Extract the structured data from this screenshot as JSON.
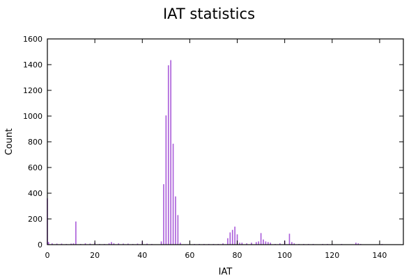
{
  "chart_data": {
    "type": "bar",
    "title": "IAT statistics",
    "xlabel": "IAT",
    "ylabel": "Count",
    "xlim": [
      0,
      150
    ],
    "ylim": [
      0,
      1600
    ],
    "x_ticks": [
      0,
      20,
      40,
      60,
      80,
      100,
      120,
      140
    ],
    "y_ticks": [
      0,
      200,
      400,
      600,
      800,
      1000,
      1200,
      1400,
      1600
    ],
    "grid": false,
    "bar_color": "#a95bd9",
    "series": [
      {
        "x": [
          0,
          0.5,
          2,
          4,
          6,
          8,
          10,
          11,
          12,
          14,
          16,
          18,
          20,
          22,
          24,
          26,
          27,
          28,
          30,
          32,
          34,
          36,
          38,
          40,
          42,
          44,
          48,
          49,
          50,
          51,
          52,
          53,
          54,
          55,
          56,
          62,
          64,
          66,
          68,
          70,
          72,
          74,
          76,
          77,
          78,
          79,
          80,
          81,
          82,
          84,
          86,
          88,
          89,
          90,
          91,
          92,
          93,
          94,
          96,
          98,
          100,
          102,
          103,
          104,
          106,
          108,
          110,
          112,
          116,
          118,
          120,
          124,
          130,
          131,
          132,
          141
        ],
        "values": [
          360,
          20,
          10,
          8,
          8,
          5,
          8,
          10,
          180,
          5,
          10,
          8,
          15,
          5,
          5,
          10,
          20,
          10,
          10,
          8,
          8,
          5,
          8,
          25,
          8,
          5,
          25,
          470,
          1005,
          1395,
          1435,
          785,
          375,
          230,
          15,
          5,
          5,
          5,
          5,
          5,
          5,
          10,
          50,
          95,
          115,
          140,
          80,
          15,
          15,
          10,
          15,
          20,
          25,
          90,
          40,
          25,
          20,
          15,
          5,
          10,
          30,
          85,
          20,
          10,
          5,
          5,
          5,
          5,
          5,
          5,
          5,
          5,
          15,
          10,
          5,
          5
        ]
      }
    ]
  }
}
